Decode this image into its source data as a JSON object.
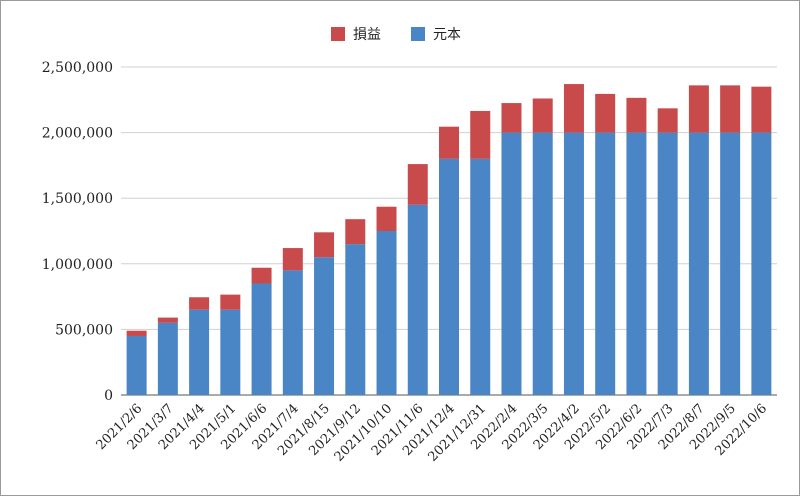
{
  "chart_data": {
    "type": "bar",
    "stacked": true,
    "title": "",
    "xlabel": "",
    "ylabel": "",
    "legend_position": "top-center",
    "grid": true,
    "ylim": [
      0,
      2500000
    ],
    "yticks": [
      "0",
      "500,000",
      "1,000,000",
      "1,500,000",
      "2,000,000",
      "2,500,000"
    ],
    "categories": [
      "2021/2/6",
      "2021/3/7",
      "2021/4/4",
      "2021/5/1",
      "2021/6/6",
      "2021/7/4",
      "2021/8/15",
      "2021/9/12",
      "2021/10/10",
      "2021/11/6",
      "2021/12/4",
      "2021/12/31",
      "2022/2/4",
      "2022/3/5",
      "2022/4/2",
      "2022/5/2",
      "2022/6/2",
      "2022/7/3",
      "2022/8/7",
      "2022/9/5",
      "2022/10/6"
    ],
    "series": [
      {
        "name": "元本",
        "color": "#4a86c5",
        "values": [
          450000,
          550000,
          650000,
          650000,
          850000,
          950000,
          1050000,
          1150000,
          1250000,
          1450000,
          1800000,
          1800000,
          2000000,
          2000000,
          2000000,
          2000000,
          2000000,
          2000000,
          2000000,
          2000000,
          2000000
        ]
      },
      {
        "name": "損益",
        "color": "#c84a4a",
        "values": [
          40000,
          40000,
          95000,
          115000,
          120000,
          170000,
          190000,
          190000,
          185000,
          310000,
          245000,
          365000,
          225000,
          260000,
          370000,
          295000,
          265000,
          185000,
          360000,
          360000,
          350000
        ]
      }
    ]
  }
}
